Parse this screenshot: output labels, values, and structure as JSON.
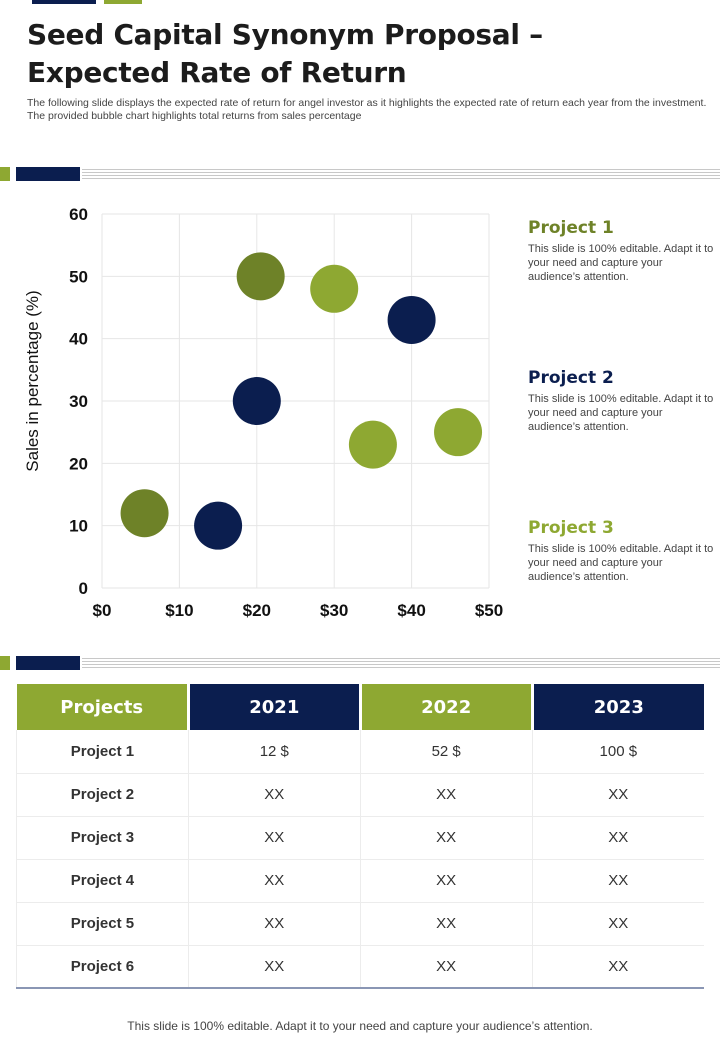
{
  "header": {
    "title_line1": "Seed Capital Synonym Proposal –",
    "title_line2": "Expected Rate of Return",
    "subtitle": "The following slide displays the expected rate of return for angel investor as it highlights the expected rate of return each year from the investment. The provided bubble chart highlights total returns from sales percentage"
  },
  "colors": {
    "navy": "#0b1e4f",
    "green_light": "#8ea832",
    "green_dark": "#6e8228"
  },
  "chart_data": {
    "type": "scatter",
    "ylabel": "Sales in percentage (%)",
    "xlabel": "",
    "xlim": [
      0,
      50
    ],
    "ylim": [
      0,
      60
    ],
    "x_ticks": [
      "$0",
      "$10",
      "$20",
      "$30",
      "$40",
      "$50"
    ],
    "y_ticks": [
      "0",
      "10",
      "20",
      "30",
      "40",
      "50",
      "60"
    ],
    "grid": true,
    "points": [
      {
        "x": 5.5,
        "y": 12,
        "color": "#6e8228"
      },
      {
        "x": 20.5,
        "y": 50,
        "color": "#6e8228"
      },
      {
        "x": 30,
        "y": 48,
        "color": "#8ea832"
      },
      {
        "x": 35,
        "y": 23,
        "color": "#8ea832"
      },
      {
        "x": 46,
        "y": 25,
        "color": "#8ea832"
      },
      {
        "x": 15,
        "y": 10,
        "color": "#0b1e4f"
      },
      {
        "x": 20,
        "y": 30,
        "color": "#0b1e4f"
      },
      {
        "x": 40,
        "y": 43,
        "color": "#0b1e4f"
      }
    ]
  },
  "legend": [
    {
      "title": "Project 1",
      "color": "#6e8228",
      "text": "This slide is 100% editable. Adapt it to your need and capture your audience’s attention."
    },
    {
      "title": "Project 2",
      "color": "#0b1e4f",
      "text": "This slide is 100% editable. Adapt it to your need and capture your audience’s attention."
    },
    {
      "title": "Project 3",
      "color": "#8ea832",
      "text": "This slide is 100% editable. Adapt it to your need and capture your audience’s attention."
    }
  ],
  "table": {
    "headers": [
      "Projects",
      "2021",
      "2022",
      "2023"
    ],
    "rows": [
      [
        "Project 1",
        "12 $",
        "52 $",
        "100 $"
      ],
      [
        "Project 2",
        "XX",
        "XX",
        "XX"
      ],
      [
        "Project 3",
        "XX",
        "XX",
        "XX"
      ],
      [
        "Project 4",
        "XX",
        "XX",
        "XX"
      ],
      [
        "Project 5",
        "XX",
        "XX",
        "XX"
      ],
      [
        "Project 6",
        "XX",
        "XX",
        "XX"
      ]
    ]
  },
  "footer": {
    "text": "This slide is 100% editable. Adapt it to your need and capture your audience’s attention."
  }
}
